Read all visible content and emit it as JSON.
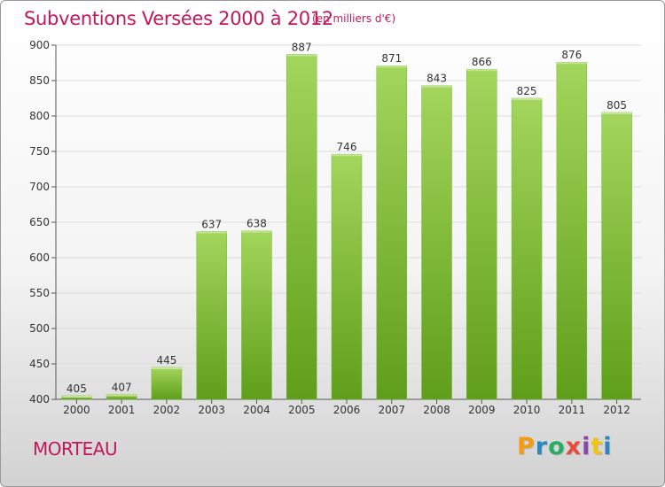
{
  "header": {
    "title": "Subventions Versées 2000 à 2012",
    "subtitle": "(en milliers d'€)"
  },
  "footer": {
    "commune": "MORTEAU",
    "brand": "Proxiti",
    "brand_letters": [
      {
        "ch": "P",
        "color": "#f39c12"
      },
      {
        "ch": "r",
        "color": "#2e86c1"
      },
      {
        "ch": "o",
        "color": "#27ae60"
      },
      {
        "ch": "x",
        "color": "#e74c3c"
      },
      {
        "ch": "i",
        "color": "#8e44ad"
      },
      {
        "ch": "t",
        "color": "#f1c40f"
      },
      {
        "ch": "i",
        "color": "#2e86c1"
      }
    ]
  },
  "chart_data": {
    "type": "bar",
    "title": "Subventions Versées 2000 à 2012",
    "subtitle": "(en milliers d'€)",
    "xlabel": "",
    "ylabel": "",
    "categories": [
      "2000",
      "2001",
      "2002",
      "2003",
      "2004",
      "2005",
      "2006",
      "2007",
      "2008",
      "2009",
      "2010",
      "2011",
      "2012"
    ],
    "values": [
      405,
      407,
      445,
      637,
      638,
      887,
      746,
      871,
      843,
      866,
      825,
      876,
      805
    ],
    "ylim": [
      400,
      900
    ],
    "yticks": [
      400,
      450,
      500,
      550,
      600,
      650,
      700,
      750,
      800,
      850,
      900
    ],
    "grid": true,
    "bar_color": "#8cc63f",
    "bar_color_dark": "#5f9e1a"
  }
}
